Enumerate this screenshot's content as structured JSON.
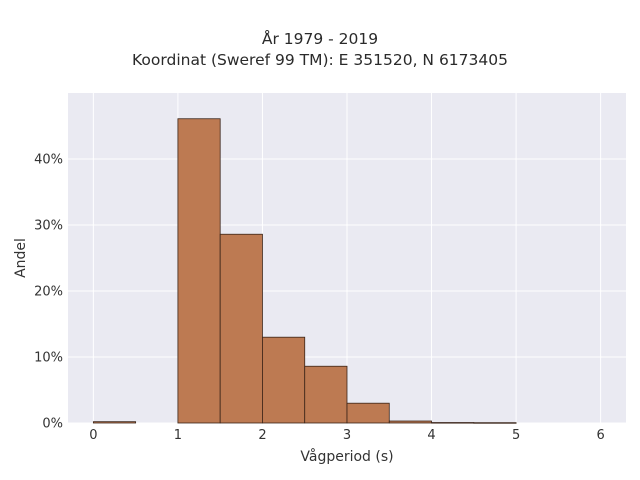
{
  "chart_data": {
    "type": "bar",
    "title": "År 1979 - 2019",
    "subtitle": "Koordinat (Sweref 99 TM): E 351520, N 6173405",
    "xlabel": "Vågperiod (s)",
    "ylabel": "Andel",
    "xlim": [
      -0.3,
      6.3
    ],
    "ylim": [
      0,
      0.5
    ],
    "x_ticks": [
      0,
      1,
      2,
      3,
      4,
      5,
      6
    ],
    "y_ticks": [
      0,
      0.1,
      0.2,
      0.3,
      0.4
    ],
    "y_tick_labels": [
      "0%",
      "10%",
      "20%",
      "30%",
      "40%"
    ],
    "bins": [
      {
        "x0": 0.0,
        "x1": 0.5,
        "value": 0.002
      },
      {
        "x0": 1.0,
        "x1": 1.5,
        "value": 0.461
      },
      {
        "x0": 1.5,
        "x1": 2.0,
        "value": 0.286
      },
      {
        "x0": 2.0,
        "x1": 2.5,
        "value": 0.13
      },
      {
        "x0": 2.5,
        "x1": 3.0,
        "value": 0.086
      },
      {
        "x0": 3.0,
        "x1": 3.5,
        "value": 0.03
      },
      {
        "x0": 3.5,
        "x1": 4.0,
        "value": 0.003
      },
      {
        "x0": 4.0,
        "x1": 4.5,
        "value": 0.0007
      },
      {
        "x0": 4.5,
        "x1": 5.0,
        "value": 0.0005
      }
    ],
    "grid": true,
    "bar_color": "#bd7a52",
    "bar_edge_color": "#3a2418",
    "plot_bg": "#eaeaf2"
  }
}
